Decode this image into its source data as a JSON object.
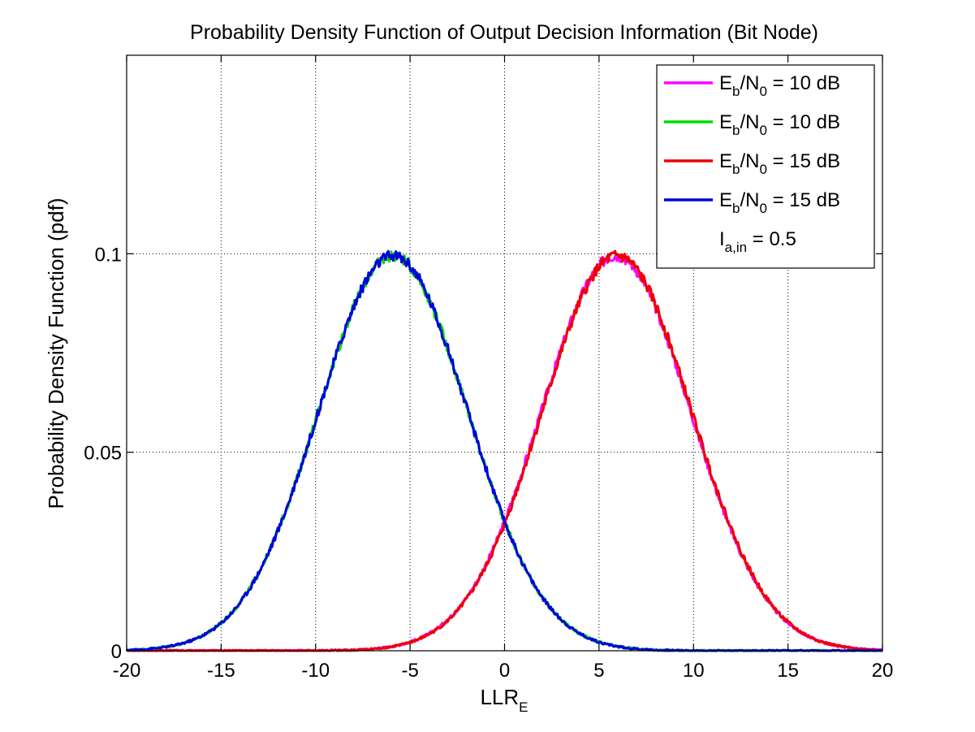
{
  "chart_data": {
    "type": "line",
    "title": "Probability Density Function of Output Decision Information (Bit Node)",
    "xlabel": {
      "main": "LLR",
      "sub": "E"
    },
    "ylabel": "Probability Density Function (pdf)",
    "xlim": [
      -20,
      20
    ],
    "ylim": [
      0,
      0.15
    ],
    "xticks": [
      -20,
      -15,
      -10,
      -5,
      0,
      5,
      10,
      15,
      20
    ],
    "xtick_labels": [
      "-20",
      "-15",
      "-10",
      "-5",
      "0",
      "5",
      "10",
      "15",
      "20"
    ],
    "yticks": [
      0,
      0.05,
      0.1
    ],
    "ytick_labels": [
      "0",
      "0.05",
      "0.1"
    ],
    "grid": true,
    "legend_position": "top-right",
    "series": [
      {
        "label_main": "E",
        "label_sub1": "b",
        "label_mid": "/N",
        "label_sub2": "0",
        "label_tail": " = 10 dB",
        "color": "#ff00ff",
        "mean": 5.9,
        "sigma": 3.95,
        "peak": 0.0995
      },
      {
        "label_main": "E",
        "label_sub1": "b",
        "label_mid": "/N",
        "label_sub2": "0",
        "label_tail": " = 10 dB",
        "color": "#00dd00",
        "mean": -5.9,
        "sigma": 3.95,
        "peak": 0.0995
      },
      {
        "label_main": "E",
        "label_sub1": "b",
        "label_mid": "/N",
        "label_sub2": "0",
        "label_tail": " = 15 dB",
        "color": "#ee0000",
        "mean": 5.95,
        "sigma": 3.95,
        "peak": 0.0995
      },
      {
        "label_main": "E",
        "label_sub1": "b",
        "label_mid": "/N",
        "label_sub2": "0",
        "label_tail": " = 15 dB",
        "color": "#0000dd",
        "mean": -5.9,
        "sigma": 3.95,
        "peak": 0.0995
      }
    ],
    "legend_note": {
      "main": "I",
      "sub": "a,in",
      "tail": " = 0.5"
    }
  }
}
